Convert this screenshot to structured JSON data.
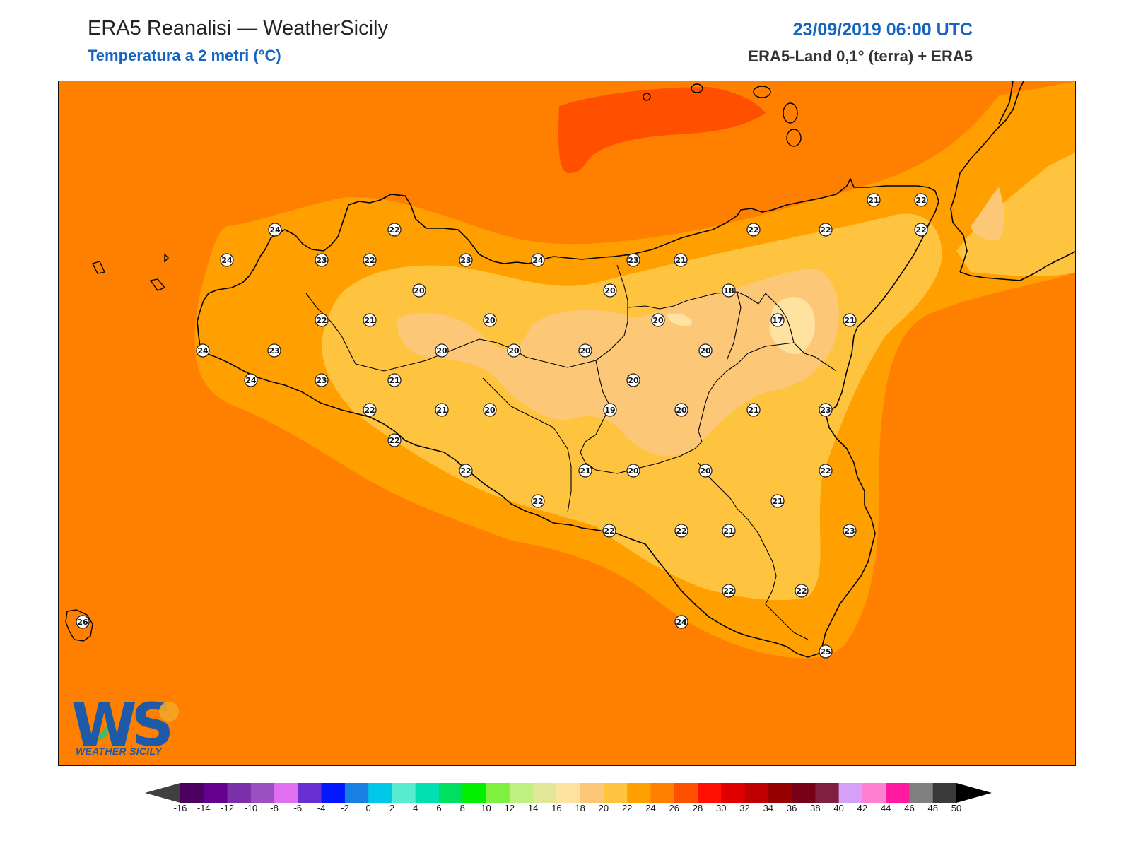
{
  "header": {
    "title": "ERA5 Reanalisi — WeatherSicily",
    "subtitle": "Temperatura a 2 metri (°C)",
    "datetime": "23/09/2019 06:00 UTC",
    "source": "ERA5-Land 0,1° (terra) + ERA5"
  },
  "logo": {
    "text": "WEATHER SICILY",
    "monogram": "WS",
    "icon": "sun-icon"
  },
  "colors": {
    "sea_base": "#ff7f00",
    "band_22_24": "#ff9f00",
    "band_20_22": "#ffc43f",
    "band_18_20": "#fcc878",
    "band_16_18": "#ffe2a0",
    "band_26_28": "#ff5000",
    "coastline": "#000000",
    "station_accent": "#1565c0"
  },
  "stations": [
    {
      "value": "24"
    },
    {
      "value": "22"
    },
    {
      "value": "24"
    },
    {
      "value": "23"
    },
    {
      "value": "22"
    },
    {
      "value": "23"
    },
    {
      "value": "24"
    },
    {
      "value": "23"
    },
    {
      "value": "21"
    },
    {
      "value": "22"
    },
    {
      "value": "22"
    },
    {
      "value": "21"
    },
    {
      "value": "22"
    },
    {
      "value": "22"
    },
    {
      "value": "20"
    },
    {
      "value": "20"
    },
    {
      "value": "20"
    },
    {
      "value": "18"
    },
    {
      "value": "24"
    },
    {
      "value": "23"
    },
    {
      "value": "22"
    },
    {
      "value": "21"
    },
    {
      "value": "20"
    },
    {
      "value": "20"
    },
    {
      "value": "20"
    },
    {
      "value": "17"
    },
    {
      "value": "21"
    },
    {
      "value": "24"
    },
    {
      "value": "23"
    },
    {
      "value": "21"
    },
    {
      "value": "20"
    },
    {
      "value": "20"
    },
    {
      "value": "20"
    },
    {
      "value": "19"
    },
    {
      "value": "20"
    },
    {
      "value": "21"
    },
    {
      "value": "23"
    },
    {
      "value": "22"
    },
    {
      "value": "21"
    },
    {
      "value": "20"
    },
    {
      "value": "22"
    },
    {
      "value": "22"
    },
    {
      "value": "21"
    },
    {
      "value": "20"
    },
    {
      "value": "20"
    },
    {
      "value": "22"
    },
    {
      "value": "21"
    },
    {
      "value": "22"
    },
    {
      "value": "22"
    },
    {
      "value": "22"
    },
    {
      "value": "21"
    },
    {
      "value": "23"
    },
    {
      "value": "22"
    },
    {
      "value": "22"
    },
    {
      "value": "24"
    },
    {
      "value": "25"
    },
    {
      "value": "26"
    }
  ],
  "colorbar": {
    "ticks": [
      "-16",
      "-14",
      "-12",
      "-10",
      "-8",
      "-6",
      "-4",
      "-2",
      "0",
      "2",
      "4",
      "6",
      "8",
      "10",
      "12",
      "14",
      "16",
      "18",
      "20",
      "22",
      "24",
      "26",
      "28",
      "30",
      "32",
      "34",
      "36",
      "38",
      "40",
      "42",
      "44",
      "46",
      "48",
      "50"
    ],
    "colors": [
      "#4b0060",
      "#640090",
      "#7a30a8",
      "#9a50c0",
      "#e070f0",
      "#6a2fd0",
      "#0018ff",
      "#1880e0",
      "#00c8e8",
      "#58ebd0",
      "#00e0b0",
      "#00e060",
      "#00f000",
      "#80f040",
      "#c0f080",
      "#e0e898",
      "#ffe2a0",
      "#fcc878",
      "#ffc43f",
      "#ff9f00",
      "#ff7f00",
      "#ff5000",
      "#ff1000",
      "#e00000",
      "#c00000",
      "#980000",
      "#780018",
      "#802040",
      "#d4a0f8",
      "#ff80d0",
      "#ff1aa0",
      "#808080",
      "#3a3a3a"
    ],
    "under_color": "#404040",
    "over_color": "#000000"
  }
}
